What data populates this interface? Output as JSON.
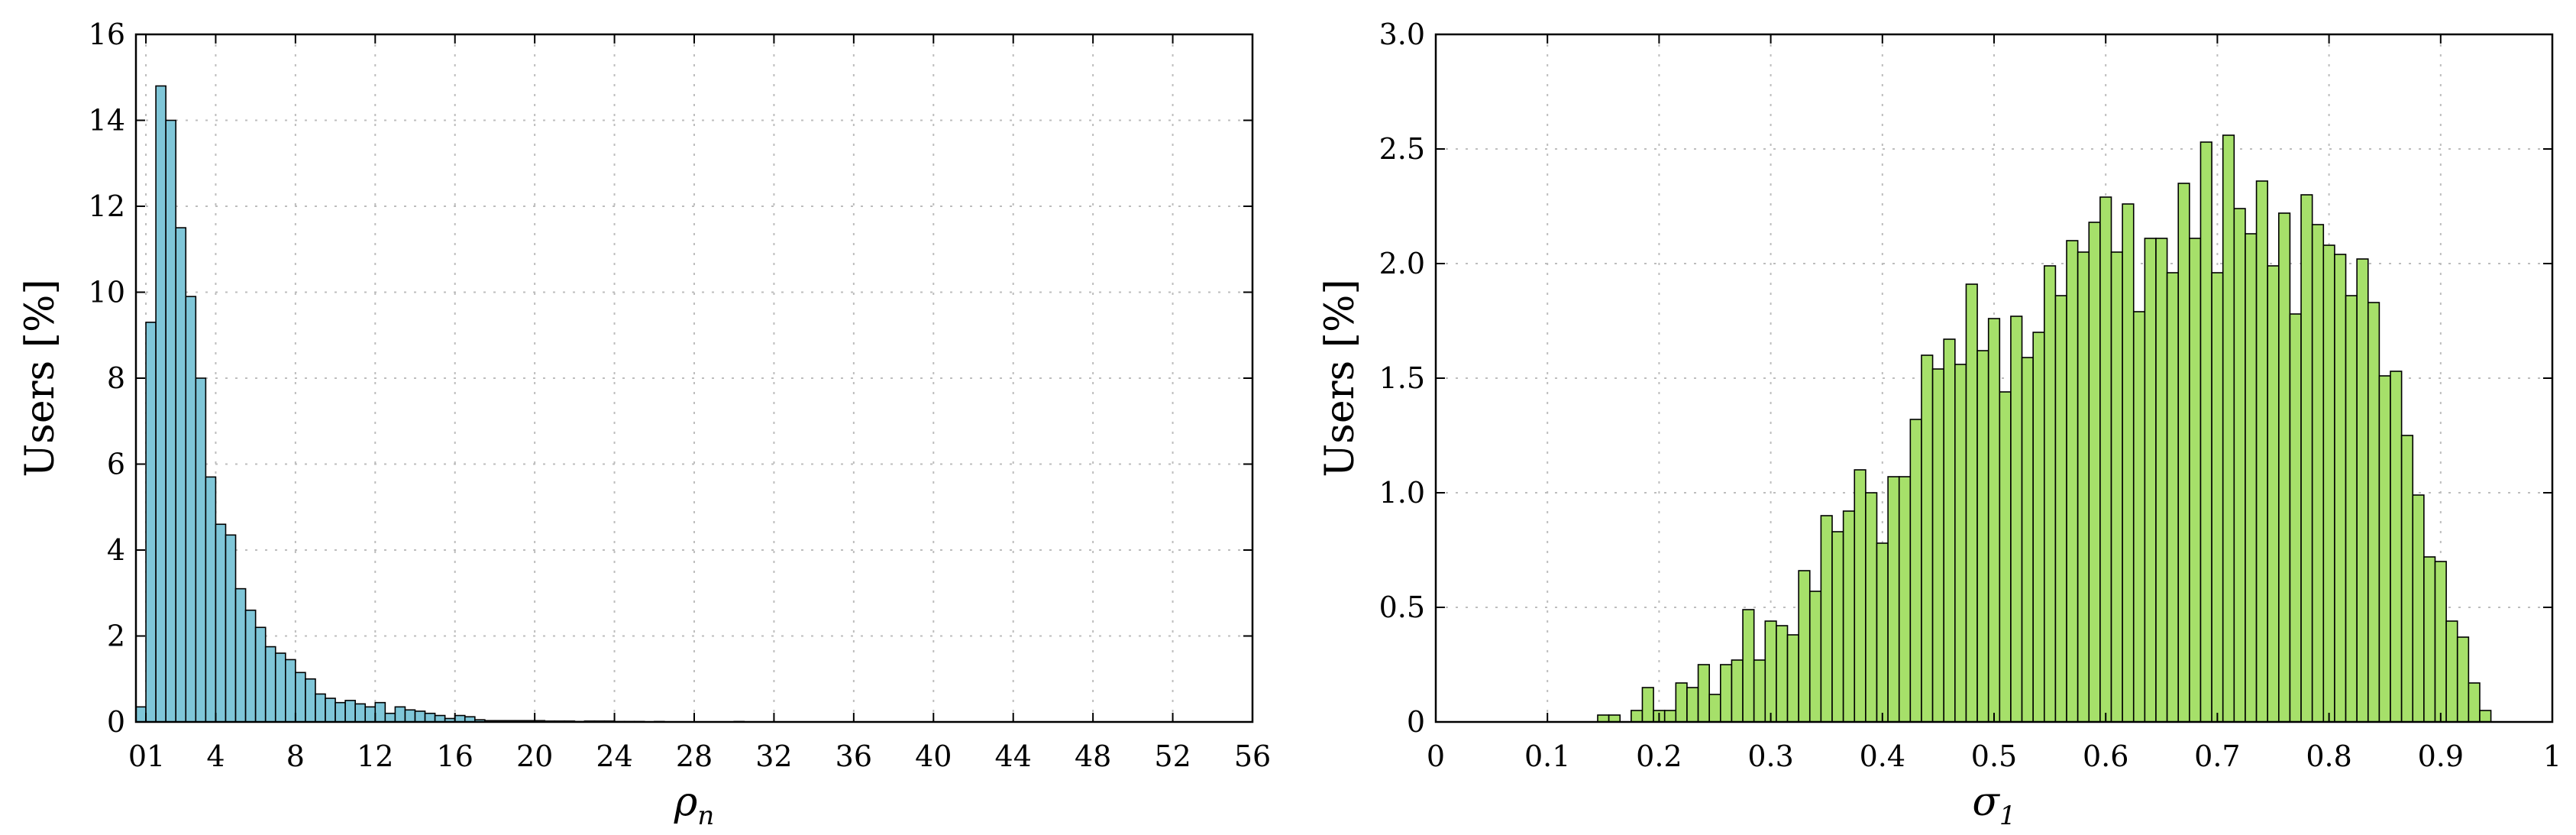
{
  "chart_data": [
    {
      "type": "bar",
      "title": "",
      "ylabel": "Users [%]",
      "xlabel_symbol": "ρ",
      "xlabel_sub": "n",
      "ylim": [
        0,
        16
      ],
      "xlim": [
        0,
        56
      ],
      "grid": true,
      "bar_color": "#7fc6d8",
      "edge_color": "#000000",
      "xtick_labels": [
        "01",
        "4",
        "8",
        "12",
        "16",
        "20",
        "24",
        "28",
        "32",
        "36",
        "40",
        "44",
        "48",
        "52",
        "56"
      ],
      "xticks": [
        0.5,
        4,
        8,
        12,
        16,
        20,
        24,
        28,
        32,
        36,
        40,
        44,
        48,
        52,
        56
      ],
      "ytick_labels": [
        "0",
        "2",
        "4",
        "6",
        "8",
        "10",
        "12",
        "14",
        "16"
      ],
      "yticks": [
        0,
        2,
        4,
        6,
        8,
        10,
        12,
        14,
        16
      ],
      "bin_start": 0,
      "bin_width": 0.5,
      "values": [
        0.35,
        9.3,
        14.8,
        14.0,
        11.5,
        9.9,
        8.0,
        5.7,
        4.6,
        4.35,
        3.1,
        2.6,
        2.2,
        1.75,
        1.6,
        1.45,
        1.15,
        1.0,
        0.65,
        0.55,
        0.45,
        0.5,
        0.42,
        0.35,
        0.45,
        0.2,
        0.35,
        0.28,
        0.25,
        0.2,
        0.15,
        0.08,
        0.15,
        0.12,
        0.05,
        0.03,
        0.03,
        0.03,
        0.03,
        0.03,
        0.03,
        0.02,
        0.02,
        0.02,
        0.01,
        0.02,
        0.02,
        0.02,
        0.01,
        0.01,
        0.01,
        0.0,
        0.01,
        0.0,
        0.0,
        0.0,
        0.0,
        0.0,
        0.0,
        0.0,
        0.01,
        0.0,
        0.0,
        0.0,
        0.0,
        0.0,
        0.0,
        0.0,
        0.0,
        0.0,
        0.0,
        0.0,
        0.0,
        0.0,
        0.0,
        0.0,
        0.0,
        0.0,
        0.0,
        0.0,
        0.0,
        0.0,
        0.0,
        0.0,
        0.0,
        0.0,
        0.0,
        0.0,
        0.0,
        0.0,
        0.0,
        0.0,
        0.0,
        0.0,
        0.0,
        0.0,
        0.0,
        0.0,
        0.0,
        0.0,
        0.0,
        0.0,
        0.0,
        0.0,
        0.0,
        0.0,
        0.0,
        0.0,
        0.0,
        0.0,
        0.0,
        0.0
      ]
    },
    {
      "type": "bar",
      "title": "",
      "ylabel": "Users [%]",
      "xlabel_symbol": "σ",
      "xlabel_sub": "1",
      "ylim": [
        0,
        3.0
      ],
      "xlim": [
        0,
        1
      ],
      "grid": true,
      "bar_color": "#a6e06a",
      "edge_color": "#000000",
      "xtick_labels": [
        "0",
        "0.1",
        "0.2",
        "0.3",
        "0.4",
        "0.5",
        "0.6",
        "0.7",
        "0.8",
        "0.9",
        "1"
      ],
      "xticks": [
        0,
        0.1,
        0.2,
        0.3,
        0.4,
        0.5,
        0.6,
        0.7,
        0.8,
        0.9,
        1
      ],
      "ytick_labels": [
        "0",
        "0.5",
        "1.0",
        "1.5",
        "2.0",
        "2.5",
        "3.0"
      ],
      "yticks": [
        0,
        0.5,
        1.0,
        1.5,
        2.0,
        2.5,
        3.0
      ],
      "bin_start": 0.145,
      "bin_width": 0.01,
      "values": [
        0.03,
        0.03,
        0.0,
        0.05,
        0.15,
        0.05,
        0.05,
        0.17,
        0.15,
        0.25,
        0.12,
        0.25,
        0.27,
        0.49,
        0.27,
        0.44,
        0.42,
        0.38,
        0.66,
        0.57,
        0.9,
        0.83,
        0.92,
        1.1,
        1.0,
        0.78,
        1.07,
        1.07,
        1.32,
        1.6,
        1.54,
        1.67,
        1.56,
        1.91,
        1.62,
        1.76,
        1.44,
        1.77,
        1.59,
        1.7,
        1.99,
        1.86,
        2.1,
        2.05,
        2.18,
        2.29,
        2.05,
        2.26,
        1.79,
        2.11,
        2.11,
        1.96,
        2.35,
        2.11,
        2.53,
        1.96,
        2.56,
        2.24,
        2.13,
        2.36,
        1.99,
        2.22,
        1.78,
        2.3,
        2.17,
        2.08,
        2.04,
        1.86,
        2.02,
        1.83,
        1.51,
        1.53,
        1.25,
        0.99,
        0.72,
        0.7,
        0.44,
        0.37,
        0.17,
        0.05
      ]
    }
  ]
}
